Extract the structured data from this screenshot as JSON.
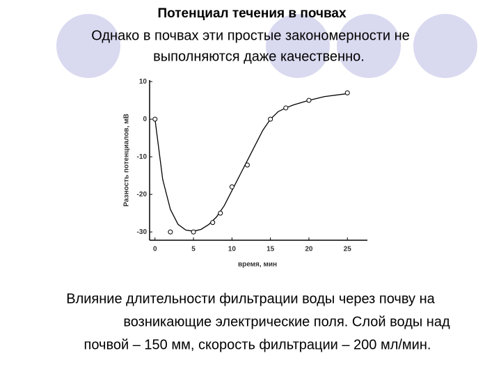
{
  "chart_data": {
    "type": "scatter",
    "title": "Потенциал течения в почвах",
    "subtitle": [
      "Однако в почвах эти простые закономерности не",
      "выполняются даже качественно."
    ],
    "x_label": "время, мин",
    "y_label": "Разность потенциалов, мВ",
    "caption": [
      "Влияние длительности фильтрации воды через почву на",
      "возникающие электрические поля. Слой воды над",
      "почвой – 150 мм, скорость фильтрации – 200 мл/мин."
    ],
    "x": [
      0,
      2,
      5,
      7.5,
      8.5,
      10,
      12,
      15,
      17,
      20,
      25
    ],
    "values": [
      0,
      -30,
      -30,
      -27.5,
      -25,
      -18,
      -12.2,
      0,
      3,
      5,
      7
    ],
    "curve": {
      "x": [
        0,
        0.5,
        1,
        2,
        3,
        4,
        5,
        6,
        7,
        8,
        9,
        10,
        11,
        12,
        13,
        14,
        15,
        16,
        17,
        18,
        20,
        22,
        25
      ],
      "values": [
        0,
        -8,
        -16,
        -24,
        -28,
        -29.5,
        -29.8,
        -29.3,
        -28,
        -26,
        -23,
        -19,
        -15,
        -11,
        -7,
        -3,
        0,
        2,
        3,
        3.8,
        5,
        6,
        6.8
      ]
    },
    "color": "#000000",
    "xlim": [
      -0.7,
      27.6
    ],
    "xticks": [
      0,
      5,
      10,
      15,
      20,
      25
    ],
    "ylim": [
      -32.2,
      10.4
    ],
    "yticks": [
      10,
      0,
      -10,
      -20,
      -30
    ]
  }
}
